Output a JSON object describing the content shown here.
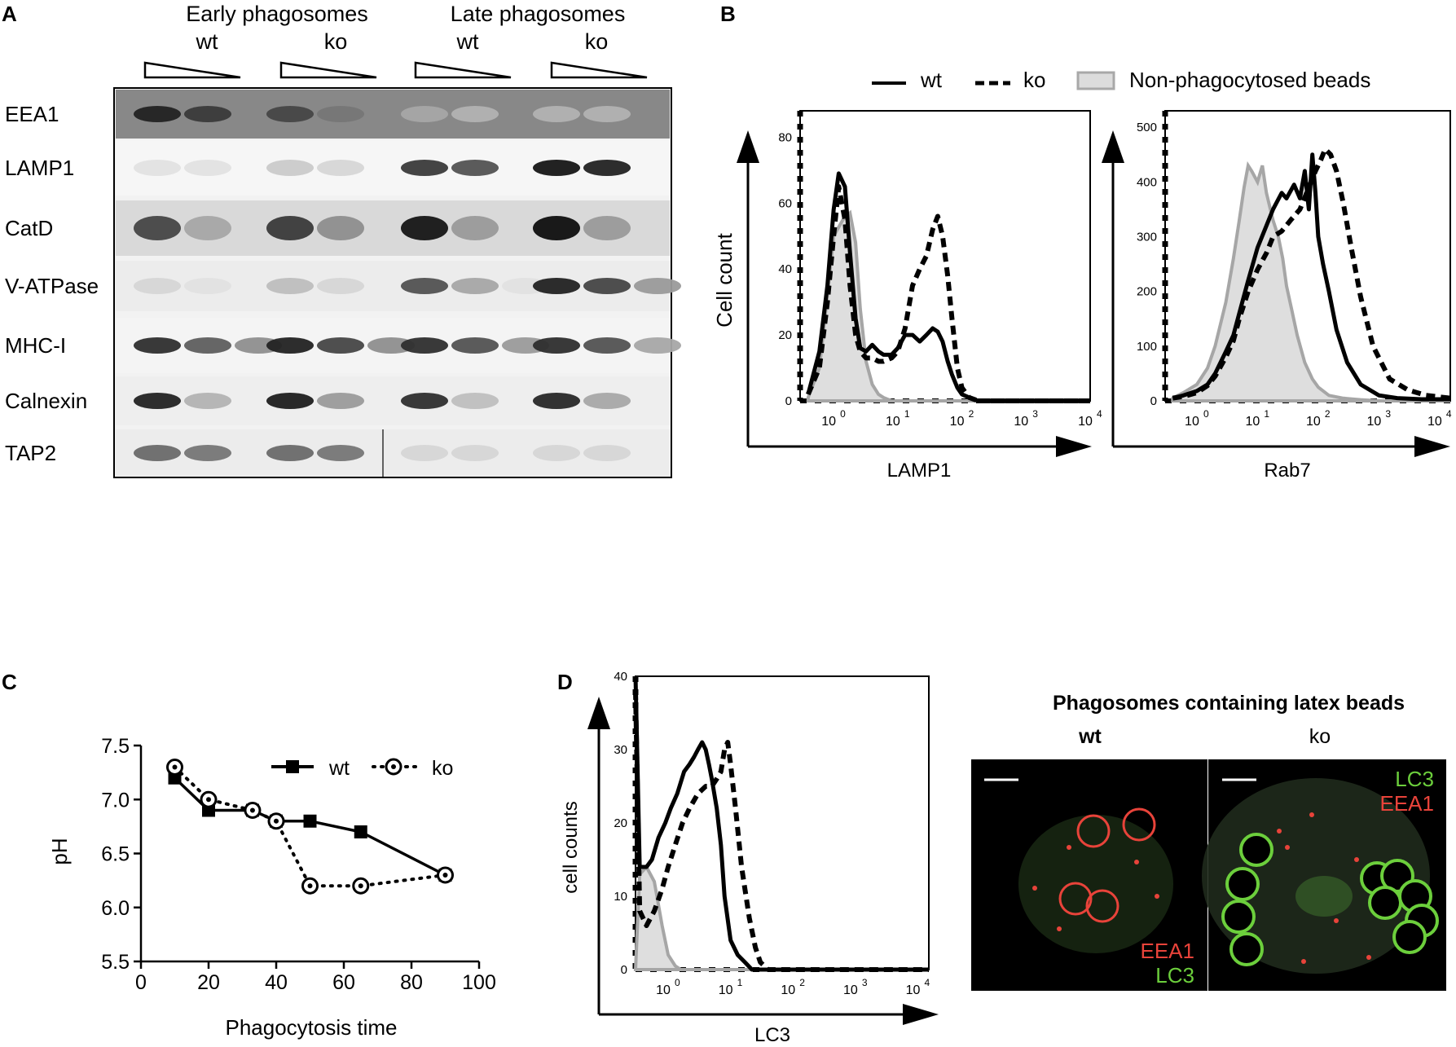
{
  "panels": {
    "A": "A",
    "B": "B",
    "C": "C",
    "D": "D"
  },
  "panelA": {
    "group_headers": [
      "Early phagosomes",
      "Late phagosomes"
    ],
    "lane_labels": [
      "wt",
      "ko",
      "wt",
      "ko"
    ],
    "rows": [
      "EEA1",
      "LAMP1",
      "CatD",
      "V-ATPase",
      "MHC-I",
      "Calnexin",
      "TAP2"
    ]
  },
  "panelB": {
    "legend": {
      "wt": "wt",
      "ko": "ko",
      "beads": "Non-phagocytosed beads"
    },
    "ylabel": "Cell count",
    "xlog_ticks": [
      "0",
      "1",
      "2",
      "3",
      "4"
    ],
    "log_base": "10"
  },
  "panelD_images": {
    "title": "Phagosomes containing latex beads",
    "wt_label": "wt",
    "ko_label": "ko",
    "wt_legend": [
      "EEA1",
      "LC3"
    ],
    "ko_legend": [
      "LC3",
      "EEA1"
    ],
    "colors": {
      "red": "#e8433a",
      "green": "#6ccf3c"
    }
  },
  "chart_data": [
    {
      "id": "B-left",
      "type": "line",
      "xlabel": "LAMP1",
      "ylabel": "Cell count",
      "xscale": "log",
      "xlim": [
        0.3,
        10000
      ],
      "ylim": [
        0,
        88
      ],
      "yticks": [
        0,
        20,
        40,
        60,
        80
      ],
      "series": [
        {
          "name": "wt",
          "style": "solid",
          "x": [
            0.4,
            0.6,
            0.8,
            1,
            1.2,
            1.5,
            1.8,
            2.2,
            2.6,
            3.2,
            4,
            5,
            6,
            8,
            10,
            13,
            17,
            22,
            28,
            35,
            42,
            50,
            60,
            70,
            85,
            100,
            130,
            180,
            250,
            500,
            1000,
            10000
          ],
          "y": [
            2,
            15,
            35,
            58,
            69,
            65,
            45,
            25,
            16,
            15,
            17,
            15,
            14,
            14,
            16,
            20,
            20,
            18,
            20,
            22,
            21,
            18,
            12,
            8,
            4,
            2,
            1,
            0,
            0,
            0,
            0,
            0
          ]
        },
        {
          "name": "ko",
          "style": "dashed",
          "x": [
            0.4,
            0.6,
            0.8,
            1,
            1.2,
            1.5,
            1.8,
            2.2,
            2.6,
            3.2,
            4,
            5,
            6,
            8,
            10,
            13,
            17,
            22,
            28,
            35,
            42,
            50,
            60,
            70,
            85,
            100,
            130,
            180,
            250,
            500,
            1000,
            10000
          ],
          "y": [
            2,
            10,
            30,
            50,
            65,
            55,
            35,
            20,
            15,
            13,
            13,
            12,
            12,
            13,
            15,
            22,
            35,
            40,
            44,
            52,
            56,
            50,
            38,
            25,
            10,
            4,
            1,
            0,
            0,
            0,
            0,
            0
          ]
        },
        {
          "name": "Non-phagocytosed beads",
          "style": "filled",
          "x": [
            0.4,
            0.6,
            0.8,
            1,
            1.4,
            1.8,
            2.2,
            2.6,
            3.2,
            4,
            5,
            6,
            8,
            10,
            13,
            17,
            25,
            10000
          ],
          "y": [
            1,
            10,
            32,
            50,
            55,
            57,
            48,
            28,
            12,
            5,
            2,
            1,
            0,
            0,
            0,
            0,
            0,
            0
          ]
        }
      ]
    },
    {
      "id": "B-right",
      "type": "line",
      "xlabel": "Rab7",
      "xscale": "log",
      "xlim": [
        0.3,
        15000
      ],
      "ylim": [
        0,
        530
      ],
      "yticks": [
        0,
        100,
        200,
        300,
        400,
        500
      ],
      "series": [
        {
          "name": "wt",
          "style": "solid",
          "x": [
            0.4,
            0.6,
            1,
            1.5,
            2,
            3,
            4,
            5,
            7,
            10,
            14,
            18,
            25,
            30,
            40,
            50,
            60,
            70,
            80,
            90,
            100,
            120,
            150,
            200,
            300,
            500,
            1000,
            2000,
            5000,
            15000
          ],
          "y": [
            5,
            10,
            18,
            30,
            50,
            90,
            120,
            160,
            220,
            280,
            320,
            350,
            380,
            370,
            395,
            370,
            420,
            350,
            450,
            380,
            300,
            250,
            200,
            130,
            70,
            30,
            10,
            5,
            3,
            3
          ]
        },
        {
          "name": "ko",
          "style": "dashed",
          "x": [
            0.4,
            0.6,
            1,
            1.5,
            2,
            3,
            4,
            5,
            7,
            10,
            14,
            18,
            25,
            35,
            50,
            70,
            90,
            110,
            130,
            160,
            200,
            260,
            350,
            500,
            800,
            1500,
            3000,
            6000,
            15000
          ],
          "y": [
            5,
            8,
            15,
            28,
            45,
            80,
            110,
            150,
            200,
            240,
            270,
            300,
            310,
            330,
            350,
            390,
            420,
            440,
            460,
            450,
            420,
            360,
            280,
            190,
            100,
            40,
            20,
            10,
            5
          ]
        },
        {
          "name": "Non-phagocytosed beads",
          "style": "filled",
          "x": [
            0.4,
            0.6,
            1,
            1.5,
            2,
            3,
            4,
            5,
            6,
            7,
            8,
            10,
            12,
            14,
            18,
            22,
            26,
            30,
            36,
            45,
            60,
            80,
            100,
            150,
            250,
            500,
            1000,
            15000
          ],
          "y": [
            5,
            15,
            30,
            60,
            100,
            180,
            260,
            330,
            390,
            430,
            420,
            400,
            430,
            380,
            330,
            300,
            260,
            210,
            170,
            120,
            70,
            40,
            25,
            10,
            5,
            2,
            0,
            0
          ]
        }
      ]
    },
    {
      "id": "C",
      "type": "line",
      "xlabel": "Phagocytosis time",
      "ylabel": "pH",
      "xlim": [
        0,
        100
      ],
      "ylim": [
        5.5,
        7.5
      ],
      "xticks": [
        0,
        20,
        40,
        60,
        80,
        100
      ],
      "yticks": [
        5.5,
        6.0,
        6.5,
        7.0,
        7.5
      ],
      "series": [
        {
          "name": "wt",
          "marker": "square",
          "line": "solid",
          "x": [
            10,
            20,
            33,
            40,
            50,
            65,
            90
          ],
          "y": [
            7.2,
            6.9,
            6.9,
            6.8,
            6.8,
            6.7,
            6.3
          ]
        },
        {
          "name": "ko",
          "marker": "circle-open",
          "line": "dotted",
          "x": [
            10,
            20,
            33,
            40,
            50,
            65,
            90
          ],
          "y": [
            7.3,
            7.0,
            6.9,
            6.8,
            6.2,
            6.2,
            6.3
          ]
        }
      ]
    },
    {
      "id": "D",
      "type": "line",
      "xlabel": "LC3",
      "ylabel": "cell counts",
      "xscale": "log",
      "xlim": [
        0.3,
        15000
      ],
      "ylim": [
        0,
        40
      ],
      "yticks": [
        0,
        10,
        20,
        30,
        40
      ],
      "series": [
        {
          "name": "wt",
          "style": "solid",
          "x": [
            0.3,
            0.35,
            0.45,
            0.55,
            0.7,
            0.9,
            1.1,
            1.4,
            1.8,
            2.2,
            2.6,
            3,
            3.5,
            4,
            4.5,
            5,
            6,
            7,
            8,
            10,
            13,
            17,
            22,
            30,
            50,
            100,
            1000,
            15000
          ],
          "y": [
            40,
            14,
            14,
            15,
            18,
            20,
            22,
            24,
            27,
            28,
            29,
            30,
            31,
            30,
            28,
            26,
            22,
            17,
            10,
            4,
            2,
            1,
            0,
            0,
            0,
            0,
            0,
            0
          ]
        },
        {
          "name": "ko",
          "style": "dashed",
          "x": [
            0.3,
            0.35,
            0.45,
            0.6,
            0.8,
            1,
            1.3,
            1.7,
            2.2,
            3,
            4,
            5,
            6,
            7,
            8,
            9,
            10,
            12,
            15,
            20,
            25,
            30,
            40,
            60,
            100,
            1000,
            15000
          ],
          "y": [
            38,
            8,
            6,
            8,
            11,
            14,
            17,
            20,
            22,
            24,
            25,
            25,
            26,
            27,
            30,
            31,
            28,
            22,
            14,
            7,
            3,
            1,
            0,
            0,
            0,
            0,
            0
          ]
        },
        {
          "name": "Non-phagocytosed beads",
          "style": "filled",
          "x": [
            0.3,
            0.35,
            0.45,
            0.6,
            0.8,
            1,
            1.3,
            1.6,
            2,
            15000
          ],
          "y": [
            0,
            13,
            14,
            12,
            6,
            2,
            0.5,
            0,
            0,
            0
          ]
        }
      ]
    }
  ]
}
